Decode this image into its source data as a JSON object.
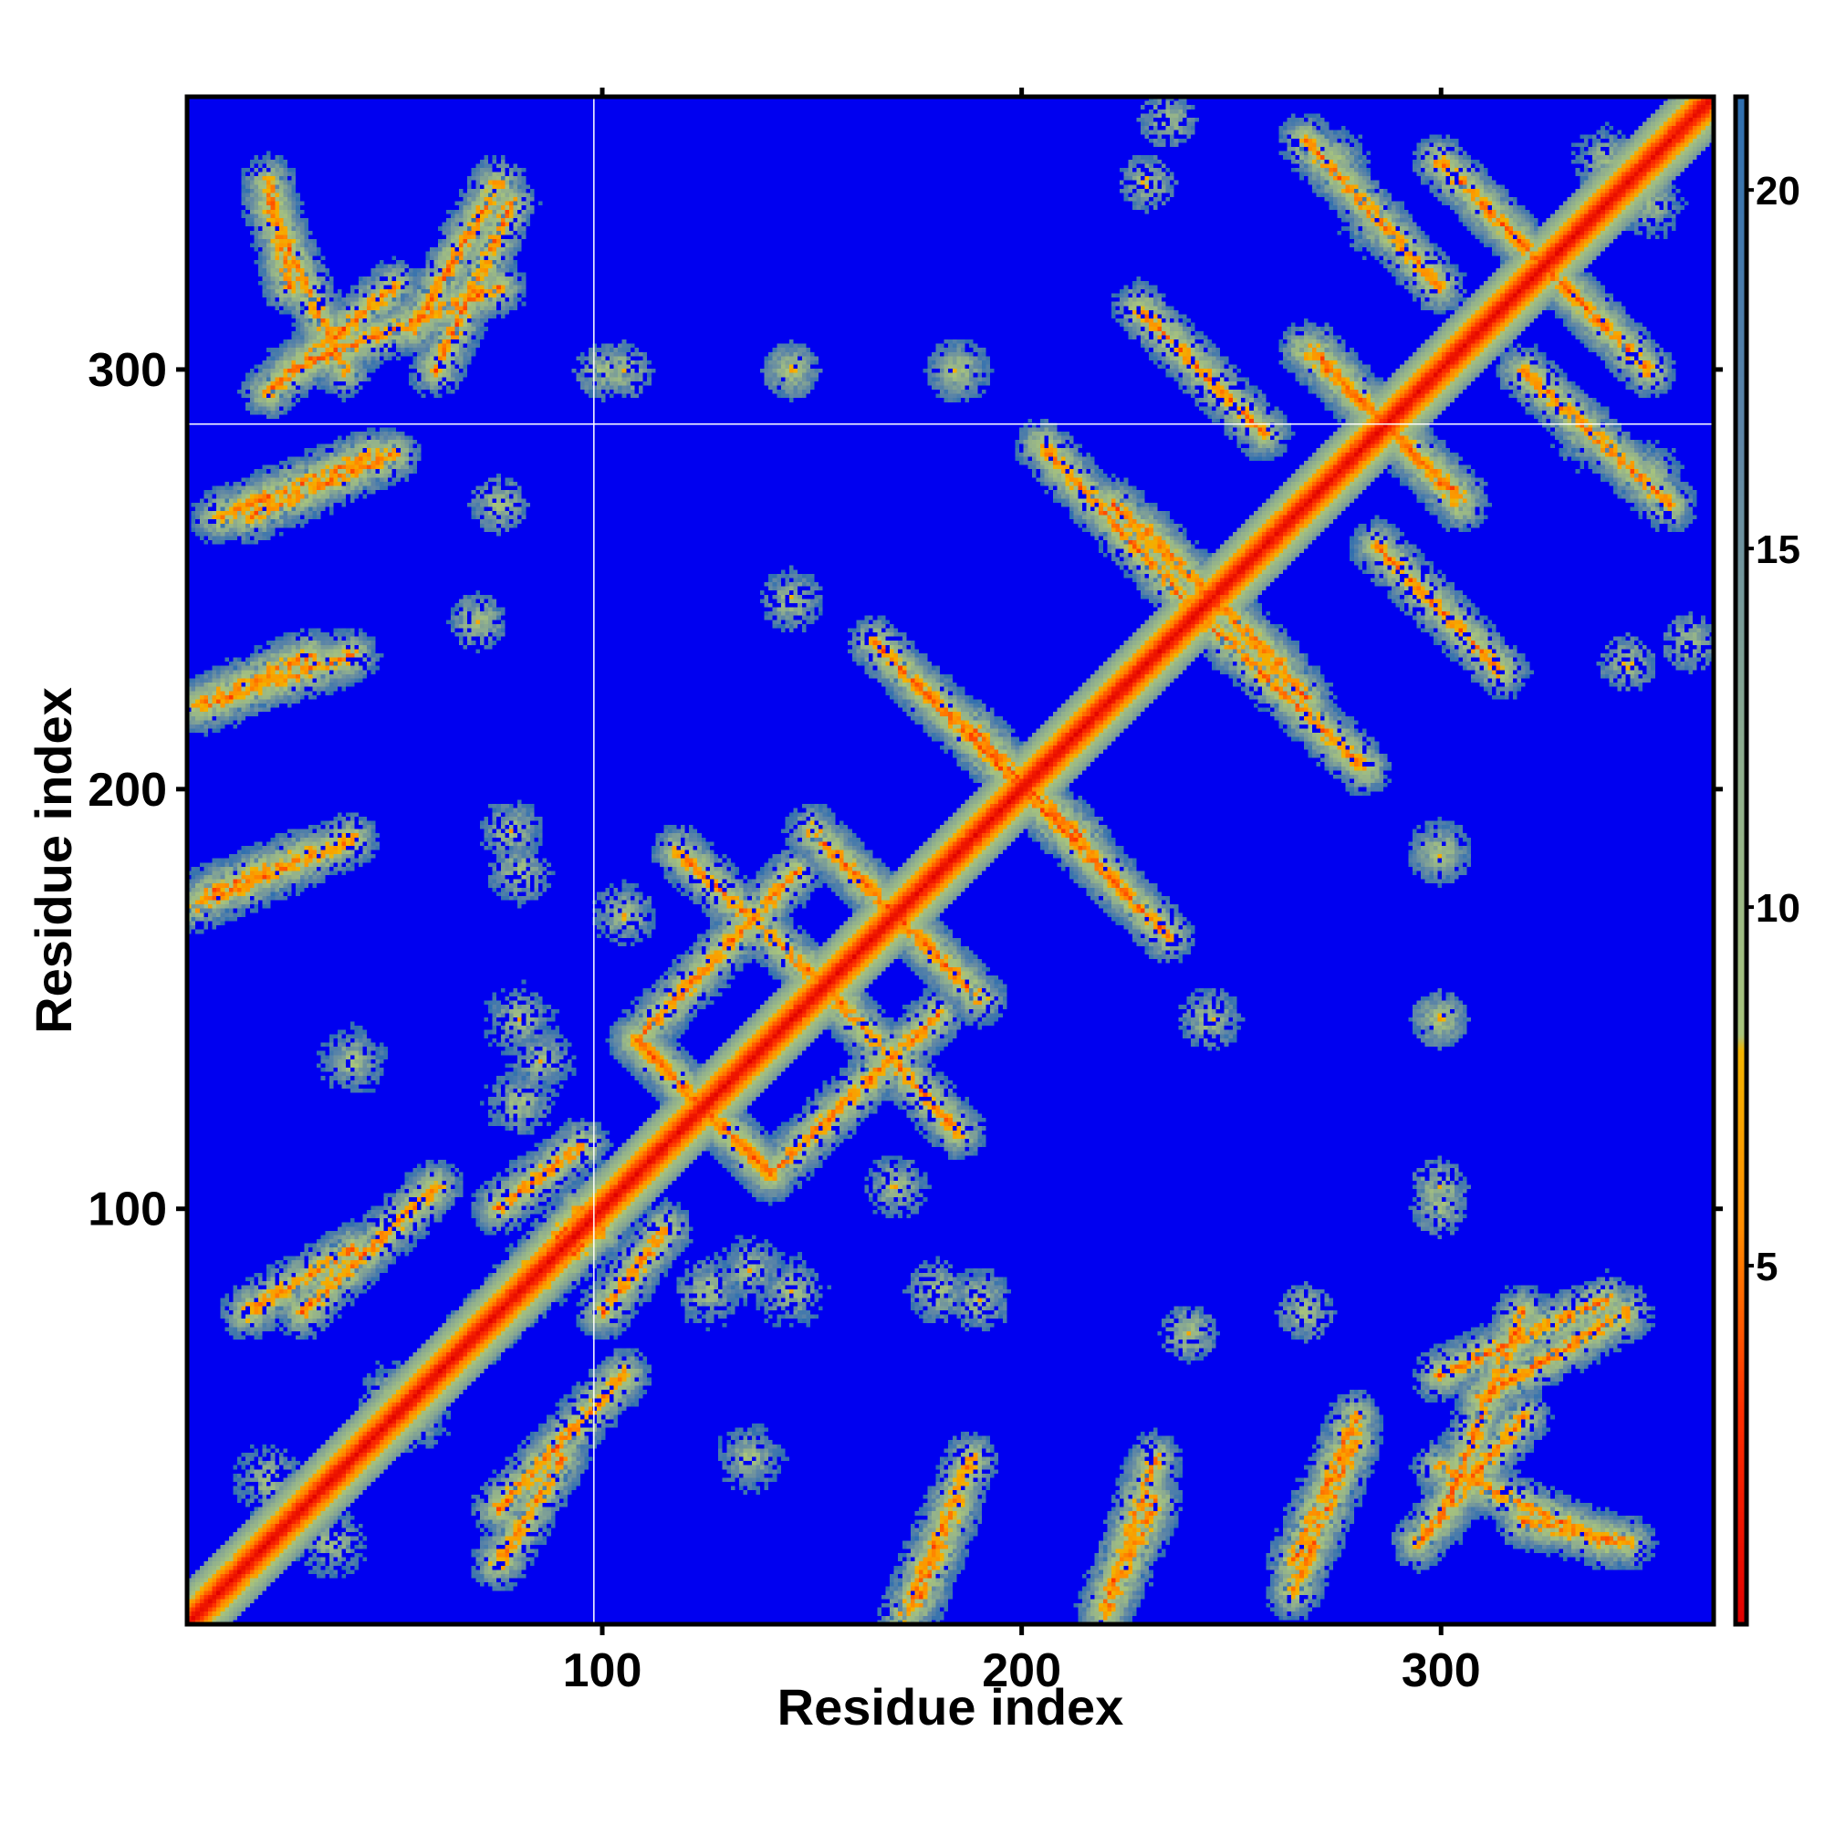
{
  "chart_data": {
    "type": "heatmap",
    "title": "",
    "xlabel": "Residue index",
    "ylabel": "Residue index",
    "n_residues": 365,
    "xlim": [
      1,
      365
    ],
    "ylim": [
      1,
      365
    ],
    "x_ticks": [
      100,
      200,
      300
    ],
    "x_tick_labels": [
      "100",
      "200",
      "300"
    ],
    "y_ticks": [
      100,
      200,
      300
    ],
    "y_tick_labels": [
      "100",
      "200",
      "300"
    ],
    "colorbar": {
      "range": [
        0,
        21.3
      ],
      "ticks": [
        5,
        10,
        15,
        20
      ],
      "tick_labels": [
        "5",
        "10",
        "15",
        "20"
      ],
      "stops": [
        {
          "value": 0,
          "color": "#e00000"
        },
        {
          "value": 3,
          "color": "#ff3000"
        },
        {
          "value": 5.5,
          "color": "#ff8c00"
        },
        {
          "value": 8,
          "color": "#f2b400"
        },
        {
          "value": 8.2,
          "color": "#a8c47c"
        },
        {
          "value": 12,
          "color": "#8fae8e"
        },
        {
          "value": 16.5,
          "color": "#5f86a6"
        },
        {
          "value": 21.3,
          "color": "#2f6fb0"
        }
      ],
      "background_color": "#0000f0"
    },
    "reference_lines": {
      "x": 98,
      "y": 287,
      "color": "#ffffff"
    },
    "contact_features": [
      {
        "kind": "diagonal_band",
        "width": 10
      },
      {
        "kind": "antiparallel",
        "x": [
          108,
          140
        ],
        "y": [
          140,
          108
        ],
        "width": 4
      },
      {
        "kind": "antiparallel",
        "x": [
          140,
          180
        ],
        "y": [
          108,
          146
        ],
        "width": 4
      },
      {
        "kind": "antiparallel",
        "x": [
          118,
          158
        ],
        "y": [
          185,
          148
        ],
        "width": 4
      },
      {
        "kind": "antiparallel",
        "x": [
          150,
          185
        ],
        "y": [
          190,
          155
        ],
        "width": 4
      },
      {
        "kind": "antiparallel",
        "x": [
          175,
          215
        ],
        "y": [
          225,
          188
        ],
        "width": 4
      },
      {
        "kind": "antiparallel",
        "x": [
          200,
          235
        ],
        "y": [
          200,
          165
        ],
        "width": 4
      },
      {
        "kind": "antiparallel",
        "x": [
          222,
          262
        ],
        "y": [
          268,
          230
        ],
        "width": 4
      },
      {
        "kind": "antiparallel",
        "x": [
          240,
          282
        ],
        "y": [
          244,
          205
        ],
        "width": 4
      },
      {
        "kind": "antiparallel",
        "x": [
          270,
          305
        ],
        "y": [
          305,
          268
        ],
        "width": 4
      },
      {
        "kind": "antiparallel",
        "x": [
          285,
          315
        ],
        "y": [
          258,
          228
        ],
        "width": 4
      },
      {
        "kind": "antiparallel",
        "x": [
          300,
          340
        ],
        "y": [
          350,
          310
        ],
        "width": 4
      },
      {
        "kind": "antiparallel",
        "x": [
          320,
          355
        ],
        "y": [
          300,
          268
        ],
        "width": 4
      },
      {
        "kind": "parallel",
        "x": [
          15,
          50
        ],
        "y": [
          265,
          280
        ],
        "width": 4
      },
      {
        "kind": "parallel",
        "x": [
          5,
          40
        ],
        "y": [
          220,
          232
        ],
        "width": 4
      },
      {
        "kind": "parallel",
        "x": [
          5,
          30
        ],
        "y": [
          175,
          185
        ],
        "width": 4
      },
      {
        "kind": "parallel",
        "x": [
          25,
          75
        ],
        "y": [
          300,
          320
        ],
        "width": 5
      },
      {
        "kind": "antiparallel",
        "x": [
          20,
          38
        ],
        "y": [
          340,
          300
        ],
        "width": 4
      },
      {
        "kind": "antiparallel",
        "x": [
          60,
          78
        ],
        "y": [
          300,
          340
        ],
        "width": 4
      },
      {
        "kind": "parallel",
        "x": [
          295,
          320
        ],
        "y": [
          20,
          50
        ],
        "width": 4
      },
      {
        "kind": "parallel",
        "x": [
          310,
          345
        ],
        "y": [
          55,
          75
        ],
        "width": 4
      },
      {
        "kind": "antiparallel",
        "x": [
          320,
          345
        ],
        "y": [
          25,
          20
        ],
        "width": 4
      },
      {
        "kind": "parallel",
        "x": [
          220,
          232
        ],
        "y": [
          2,
          30
        ],
        "width": 4
      },
      {
        "kind": "parallel",
        "x": [
          172,
          188
        ],
        "y": [
          2,
          40
        ],
        "width": 4
      },
      {
        "kind": "parallel",
        "x": [
          265,
          280
        ],
        "y": [
          8,
          45
        ],
        "width": 4
      },
      {
        "kind": "antiparallel",
        "x": [
          75,
          90
        ],
        "y": [
          15,
          40
        ],
        "width": 4
      },
      {
        "kind": "parallel",
        "x": [
          60,
          95
        ],
        "y": [
          60,
          100
        ],
        "width": 4
      },
      {
        "kind": "parallel",
        "x": [
          28,
          60
        ],
        "y": [
          75,
          105
        ],
        "width": 4
      },
      {
        "kind": "parallel",
        "x": [
          100,
          115
        ],
        "y": [
          75,
          95
        ],
        "width": 4
      },
      {
        "kind": "blob",
        "x": 145,
        "y": 80,
        "r": 8
      },
      {
        "kind": "blob",
        "x": 125,
        "y": 80,
        "r": 6
      },
      {
        "kind": "blob",
        "x": 180,
        "y": 80,
        "r": 5
      },
      {
        "kind": "blob",
        "x": 85,
        "y": 135,
        "r": 7
      },
      {
        "kind": "blob",
        "x": 40,
        "y": 135,
        "r": 6
      },
      {
        "kind": "blob",
        "x": 78,
        "y": 190,
        "r": 5
      },
      {
        "kind": "blob",
        "x": 105,
        "y": 300,
        "r": 4
      },
      {
        "kind": "blob",
        "x": 185,
        "y": 300,
        "r": 5
      },
      {
        "kind": "blob",
        "x": 145,
        "y": 300,
        "r": 4
      },
      {
        "kind": "blob",
        "x": 245,
        "y": 145,
        "r": 5
      },
      {
        "kind": "blob",
        "x": 300,
        "y": 100,
        "r": 4
      },
      {
        "kind": "blob",
        "x": 300,
        "y": 145,
        "r": 4
      },
      {
        "kind": "blob",
        "x": 300,
        "y": 185,
        "r": 5
      },
      {
        "kind": "blob",
        "x": 240,
        "y": 70,
        "r": 4
      },
      {
        "kind": "blob",
        "x": 268,
        "y": 75,
        "r": 4
      },
      {
        "kind": "blob",
        "x": 105,
        "y": 170,
        "r": 5
      },
      {
        "kind": "blob",
        "x": 335,
        "y": 285,
        "r": 8
      },
      {
        "kind": "blob",
        "x": 340,
        "y": 350,
        "r": 6
      },
      {
        "kind": "blob",
        "x": 360,
        "y": 235,
        "r": 4
      },
      {
        "kind": "blob",
        "x": 275,
        "y": 350,
        "r": 6
      },
      {
        "kind": "blob",
        "x": 230,
        "y": 345,
        "r": 4
      },
      {
        "kind": "blob",
        "x": 50,
        "y": 55,
        "r": 10
      },
      {
        "kind": "blob",
        "x": 20,
        "y": 35,
        "r": 6
      }
    ]
  }
}
